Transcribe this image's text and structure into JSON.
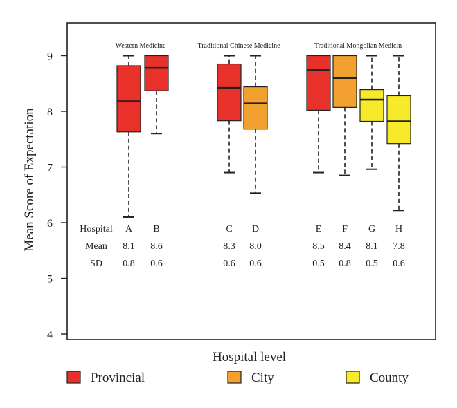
{
  "chart_data": {
    "type": "box",
    "ylabel": "Mean Score of Expectation",
    "xlabel": "Hospital level",
    "ylim": [
      4,
      9.5
    ],
    "yticks": [
      "4",
      "5",
      "6",
      "7",
      "8",
      "9"
    ],
    "grid": false,
    "legend_position": "bottom",
    "groups": [
      {
        "title": "Western Medicine",
        "hospitals": [
          "A",
          "B"
        ]
      },
      {
        "title": "Traditional Chinese Medicine",
        "hospitals": [
          "C",
          "D"
        ]
      },
      {
        "title": "Traditional Mongolian Medicin",
        "hospitals": [
          "E",
          "F",
          "G",
          "H"
        ]
      }
    ],
    "boxes": [
      {
        "hospital": "A",
        "level": "Provincial",
        "min": 6.1,
        "q1": 7.63,
        "median": 8.18,
        "q3": 8.82,
        "max": 9.0
      },
      {
        "hospital": "B",
        "level": "Provincial",
        "min": 7.6,
        "q1": 8.37,
        "median": 8.78,
        "q3": 9.0,
        "max": 9.0
      },
      {
        "hospital": "C",
        "level": "Provincial",
        "min": 6.9,
        "q1": 7.83,
        "median": 8.42,
        "q3": 8.85,
        "max": 9.0
      },
      {
        "hospital": "D",
        "level": "City",
        "min": 6.53,
        "q1": 7.68,
        "median": 8.14,
        "q3": 8.44,
        "max": 9.0
      },
      {
        "hospital": "E",
        "level": "Provincial",
        "min": 6.9,
        "q1": 8.02,
        "median": 8.74,
        "q3": 9.0,
        "max": 9.0
      },
      {
        "hospital": "F",
        "level": "City",
        "min": 6.85,
        "q1": 8.07,
        "median": 8.6,
        "q3": 9.0,
        "max": 9.0
      },
      {
        "hospital": "G",
        "level": "County",
        "min": 6.96,
        "q1": 7.82,
        "median": 8.21,
        "q3": 8.39,
        "max": 9.0
      },
      {
        "hospital": "H",
        "level": "County",
        "min": 6.22,
        "q1": 7.42,
        "median": 7.82,
        "q3": 8.28,
        "max": 9.0
      }
    ],
    "stats_table": {
      "row_labels": [
        "Hospital",
        "Mean",
        "SD"
      ],
      "hospital": [
        "A",
        "B",
        "C",
        "D",
        "E",
        "F",
        "G",
        "H"
      ],
      "mean": [
        "8.1",
        "8.6",
        "8.3",
        "8.0",
        "8.5",
        "8.4",
        "8.1",
        "7.8"
      ],
      "sd": [
        "0.8",
        "0.6",
        "0.6",
        "0.6",
        "0.5",
        "0.8",
        "0.5",
        "0.6"
      ]
    },
    "legend": [
      {
        "label": "Provincial",
        "color": "#e8312b"
      },
      {
        "label": "City",
        "color": "#f2a130"
      },
      {
        "label": "County",
        "color": "#f7ea2a"
      }
    ]
  }
}
